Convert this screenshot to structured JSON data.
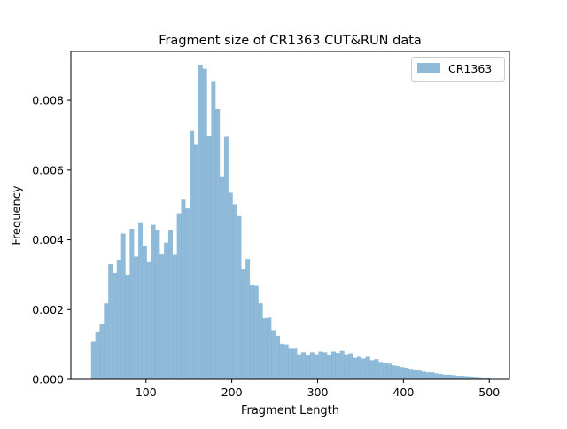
{
  "chart_data": {
    "type": "bar",
    "title": "Fragment size of CR1363 CUT&RUN data",
    "xlabel": "Fragment Length",
    "ylabel": "Frequency",
    "xlim": [
      12.5,
      523.5
    ],
    "ylim": [
      0,
      0.0094
    ],
    "xticks": [
      100,
      200,
      300,
      400,
      500
    ],
    "xtick_labels": [
      "100",
      "200",
      "300",
      "400",
      "500"
    ],
    "yticks": [
      0.0,
      0.002,
      0.004,
      0.006,
      0.008
    ],
    "ytick_labels": [
      "0.000",
      "0.002",
      "0.004",
      "0.006",
      "0.008"
    ],
    "grid": false,
    "legend_position": "top-right",
    "bin_start": 36,
    "bin_width": 5,
    "series": [
      {
        "name": "CR1363",
        "color": "#1f77b4",
        "opacity": 0.5,
        "values": [
          0.00108,
          0.00135,
          0.0016,
          0.00218,
          0.0033,
          0.00305,
          0.00343,
          0.00418,
          0.003,
          0.00432,
          0.00352,
          0.00448,
          0.00383,
          0.00336,
          0.00443,
          0.00428,
          0.00358,
          0.00392,
          0.00427,
          0.00357,
          0.00476,
          0.00515,
          0.0049,
          0.00712,
          0.00672,
          0.00902,
          0.0089,
          0.00698,
          0.00855,
          0.00775,
          0.0058,
          0.00695,
          0.00535,
          0.00502,
          0.00468,
          0.00315,
          0.00345,
          0.00272,
          0.00268,
          0.00218,
          0.00175,
          0.00177,
          0.00141,
          0.00125,
          0.00102,
          0.001,
          0.00088,
          0.00088,
          0.00072,
          0.00078,
          0.0007,
          0.00078,
          0.00072,
          0.0008,
          0.00078,
          0.0007,
          0.0008,
          0.00076,
          0.00082,
          0.00072,
          0.00075,
          0.00062,
          0.00065,
          0.0006,
          0.00065,
          0.00055,
          0.00058,
          0.0005,
          0.00048,
          0.00045,
          0.0004,
          0.00038,
          0.00035,
          0.00033,
          0.0003,
          0.00028,
          0.00025,
          0.00022,
          0.0002,
          0.0002,
          0.00017,
          0.00015,
          0.00013,
          0.00013,
          0.00012,
          0.0001,
          0.0001,
          9e-05,
          8e-05,
          7e-05,
          6e-05,
          5e-05,
          5e-05
        ]
      }
    ]
  }
}
